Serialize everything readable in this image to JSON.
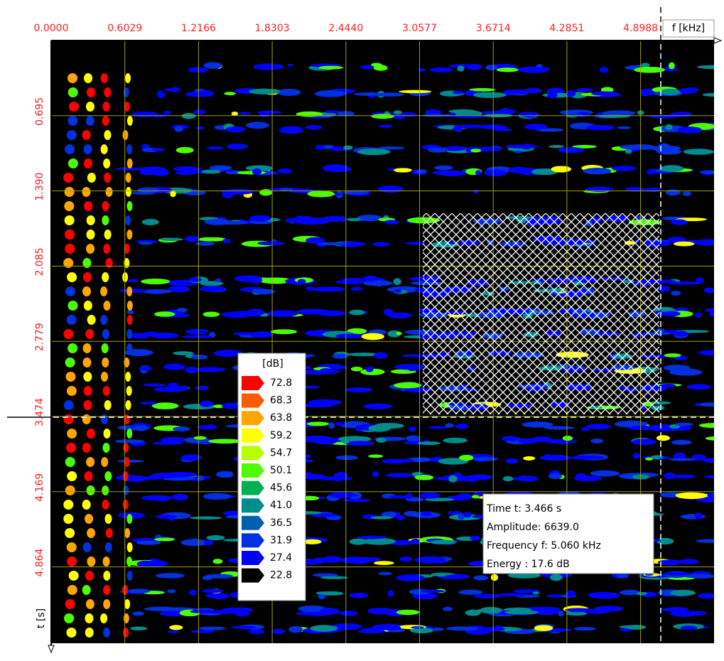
{
  "top_axis": {
    "labels": [
      "0.0000",
      "0.6029",
      "1.2166",
      "1.8303",
      "2.4440",
      "3.0577",
      "3.6714",
      "4.2851",
      "4.8988"
    ],
    "title": "f [kHz]"
  },
  "left_axis": {
    "labels": [
      "0.695",
      "1.390",
      "2.085",
      "2.779",
      "3.474",
      "4.169",
      "4.864"
    ],
    "title": "t [s]"
  },
  "legend": {
    "unit": "[dB]",
    "levels": [
      "72.8",
      "68.3",
      "63.8",
      "59.2",
      "54.7",
      "50.1",
      "45.6",
      "41.0",
      "36.5",
      "31.9",
      "27.4",
      "22.8"
    ],
    "colors": [
      "#ff0000",
      "#ff5a00",
      "#ffa500",
      "#ffff00",
      "#b4ff00",
      "#4cff00",
      "#00b050",
      "#008c8c",
      "#0060b0",
      "#0030e0",
      "#0000ff",
      "#000000"
    ]
  },
  "readout": [
    "Time t:  3.466 s",
    "Amplitude: 6639.0",
    "Frequency f:  5.060 kHz",
    "Energy : 17.6 dB"
  ]
}
